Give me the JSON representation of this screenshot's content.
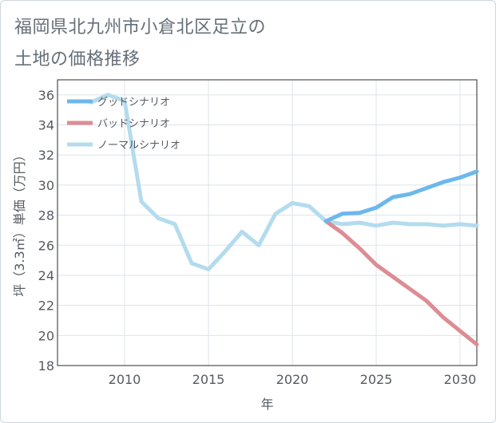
{
  "title_line1": "福岡県北九州市小倉北区足立の",
  "title_line2": "土地の価格推移",
  "chart_data": {
    "type": "line",
    "xlabel": "年",
    "ylabel": "坪（3.3㎡）単価（万円）",
    "xlim": [
      2006,
      2031
    ],
    "ylim": [
      18,
      37
    ],
    "x_ticks": [
      2010,
      2015,
      2020,
      2025,
      2030
    ],
    "y_ticks": [
      18,
      20,
      22,
      24,
      26,
      28,
      30,
      32,
      34,
      36
    ],
    "grid": true,
    "legend_position": "top-left",
    "series": [
      {
        "name": "グッドシナリオ",
        "color": "#6cb8ec",
        "x": [
          2022,
          2023,
          2024,
          2025,
          2026,
          2027,
          2028,
          2029,
          2030,
          2031
        ],
        "y": [
          27.6,
          28.1,
          28.15,
          28.5,
          29.2,
          29.4,
          29.8,
          30.2,
          30.5,
          30.9
        ]
      },
      {
        "name": "バッドシナリオ",
        "color": "#dc8d93",
        "x": [
          2022,
          2023,
          2024,
          2025,
          2026,
          2027,
          2028,
          2029,
          2030,
          2031
        ],
        "y": [
          27.6,
          26.8,
          25.8,
          24.7,
          23.9,
          23.1,
          22.3,
          21.2,
          20.3,
          19.4
        ]
      },
      {
        "name": "ノーマルシナリオ",
        "color": "#b4dbee",
        "x": [
          2008,
          2009,
          2010,
          2011,
          2012,
          2013,
          2014,
          2015,
          2016,
          2017,
          2018,
          2019,
          2020,
          2021,
          2022,
          2023,
          2024,
          2025,
          2026,
          2027,
          2028,
          2029,
          2030,
          2031
        ],
        "y": [
          35.5,
          36.0,
          35.6,
          28.9,
          27.8,
          27.4,
          24.8,
          24.4,
          25.6,
          26.9,
          26.0,
          28.1,
          28.8,
          28.6,
          27.6,
          27.4,
          27.5,
          27.3,
          27.5,
          27.4,
          27.4,
          27.3,
          27.4,
          27.3
        ]
      }
    ]
  }
}
